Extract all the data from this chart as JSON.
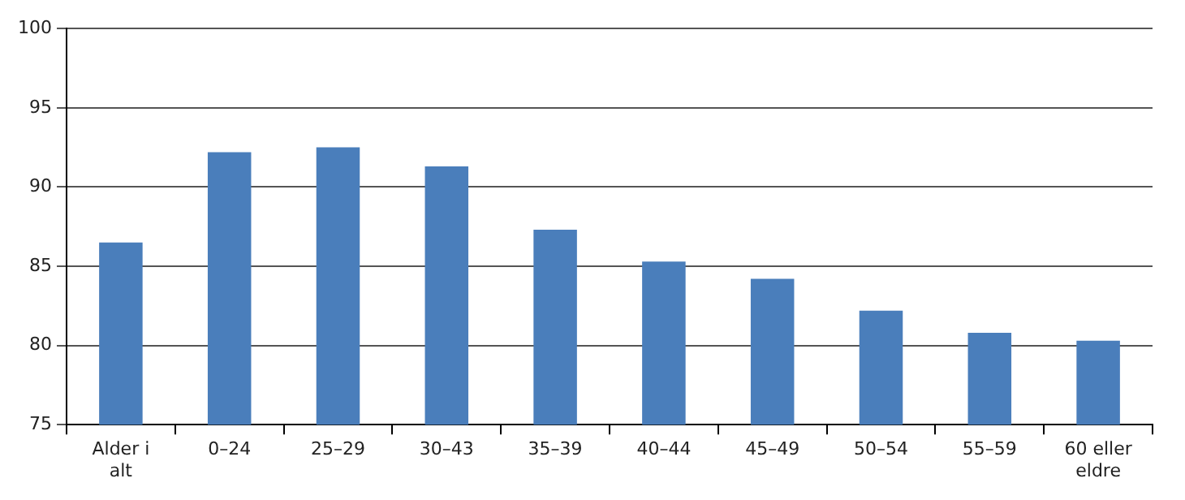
{
  "chart_data": {
    "type": "bar",
    "categories": [
      "Alder i alt",
      "0–24",
      "25–29",
      "30–43",
      "35–39",
      "40–44",
      "45–49",
      "50–54",
      "55–59",
      "60 eller eldre"
    ],
    "values": [
      86.5,
      92.2,
      92.5,
      91.3,
      87.3,
      85.3,
      84.2,
      82.2,
      80.8,
      80.3
    ],
    "color": "#4a7ebb",
    "ylim": [
      75,
      100
    ],
    "yticks": [
      75,
      80,
      85,
      90,
      95,
      100
    ],
    "grid": "y"
  }
}
